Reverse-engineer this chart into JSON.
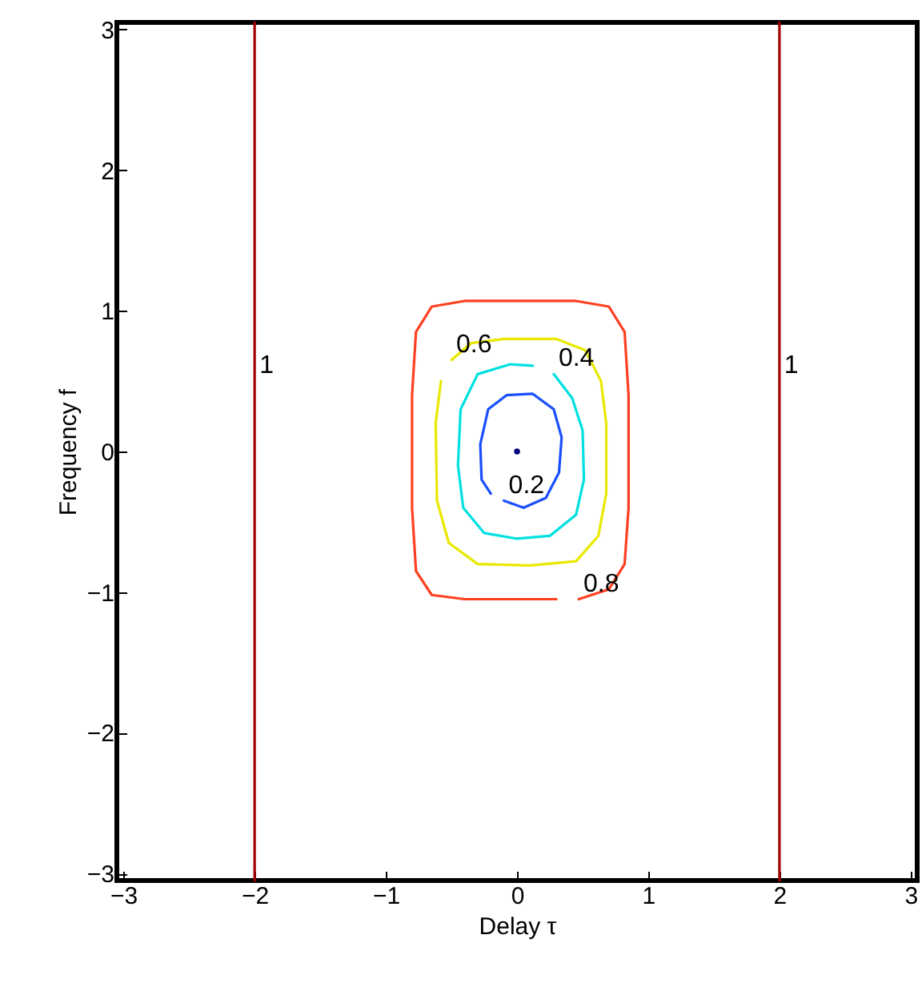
{
  "chart_data": {
    "type": "line",
    "xlabel": "Delay τ",
    "ylabel": "Frequency f",
    "xlim": [
      -3.05,
      3.05
    ],
    "ylim": [
      -3.05,
      3.05
    ],
    "xticks": [
      {
        "value": -3,
        "label": "−3"
      },
      {
        "value": -2,
        "label": "−2"
      },
      {
        "value": -1,
        "label": "−1"
      },
      0,
      1,
      2,
      3
    ],
    "yticks": [
      {
        "value": -3,
        "label": "−3"
      },
      {
        "value": -2,
        "label": "−2"
      },
      {
        "value": -1,
        "label": "−1"
      },
      0,
      1,
      2,
      3
    ],
    "line_style": "solid",
    "series": [
      {
        "name": "1",
        "color": "#a00000",
        "x": [
          -2,
          -2,
          -2
        ],
        "values": [
          0.5,
          3.05,
          -3.05
        ]
      },
      {
        "name": "1",
        "color": "#a00000",
        "x": [
          2,
          2,
          2
        ],
        "values": [
          0.5,
          3.05,
          -3.05
        ]
      },
      {
        "name": "0.8",
        "color": "#ff4020",
        "x": [
          0.47,
          0.7,
          0.82,
          0.85,
          0.85,
          0.82,
          0.7,
          0.45,
          -0.4,
          -0.65,
          -0.77,
          -0.8,
          -0.8,
          -0.77,
          -0.65,
          -0.4,
          0.3
        ],
        "values": [
          -1.05,
          -0.98,
          -0.8,
          -0.4,
          0.4,
          0.85,
          1.03,
          1.07,
          1.07,
          1.03,
          0.85,
          0.4,
          -0.4,
          -0.85,
          -1.02,
          -1.05,
          -1.05
        ]
      },
      {
        "name": "0.6",
        "color": "#e8e800",
        "x": [
          -0.5,
          -0.35,
          -0.1,
          0.3,
          0.52,
          0.64,
          0.68,
          0.68,
          0.62,
          0.45,
          0.1,
          -0.3,
          -0.52,
          -0.61,
          -0.62,
          -0.58
        ],
        "values": [
          0.65,
          0.77,
          0.8,
          0.8,
          0.72,
          0.5,
          0.2,
          -0.3,
          -0.6,
          -0.78,
          -0.81,
          -0.8,
          -0.65,
          -0.35,
          0.2,
          0.5
        ]
      },
      {
        "name": "0.4",
        "color": "#00e0e0",
        "x": [
          0.28,
          0.42,
          0.5,
          0.51,
          0.45,
          0.25,
          0,
          -0.25,
          -0.41,
          -0.45,
          -0.43,
          -0.3,
          -0.05,
          0.12
        ],
        "values": [
          0.55,
          0.38,
          0.15,
          -0.2,
          -0.45,
          -0.6,
          -0.62,
          -0.58,
          -0.4,
          -0.1,
          0.3,
          0.55,
          0.62,
          0.61
        ]
      },
      {
        "name": "0.2",
        "color": "#1a4fff",
        "x": [
          -0.1,
          0.05,
          0.22,
          0.32,
          0.34,
          0.28,
          0.12,
          -0.08,
          -0.22,
          -0.28,
          -0.27,
          -0.2
        ],
        "values": [
          -0.35,
          -0.4,
          -0.33,
          -0.15,
          0.1,
          0.3,
          0.41,
          0.4,
          0.3,
          0.05,
          -0.2,
          -0.3
        ]
      },
      {
        "type": "scatter",
        "color": "#000080",
        "x": [
          0
        ],
        "values": [
          0
        ]
      }
    ]
  }
}
